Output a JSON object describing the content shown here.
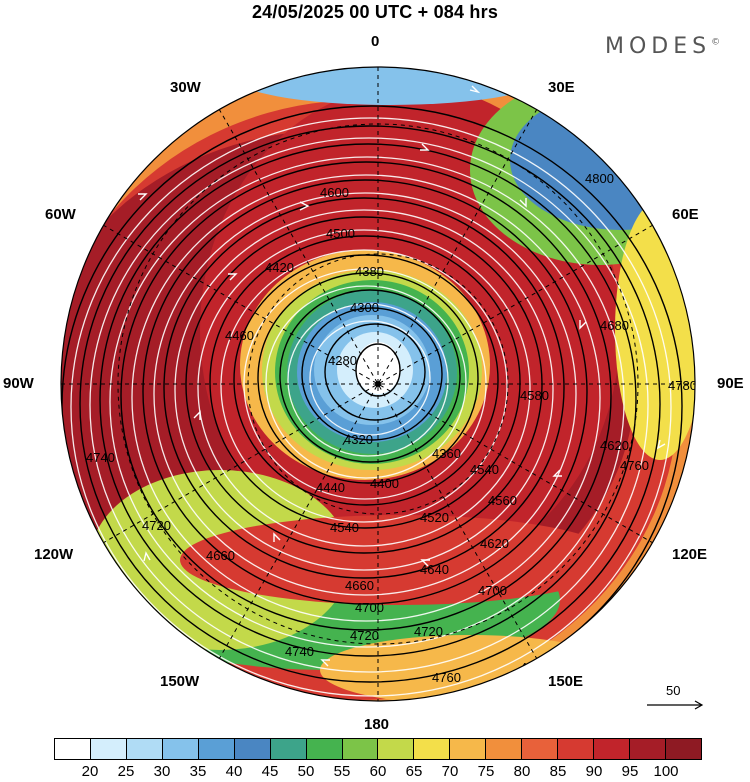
{
  "title": "24/05/2025  00 UTC  + 084 hrs",
  "brand": "MODES",
  "brand_mark": "©",
  "longitude_labels": [
    "0",
    "30E",
    "60E",
    "90E",
    "120E",
    "150E",
    "180",
    "150W",
    "120W",
    "90W",
    "60W",
    "30W"
  ],
  "reference_vector_label": "50",
  "colorbar": {
    "labels": [
      "20",
      "25",
      "30",
      "35",
      "40",
      "45",
      "50",
      "55",
      "60",
      "65",
      "70",
      "75",
      "80",
      "85",
      "90",
      "95",
      "100"
    ],
    "colors": [
      "#ffffff",
      "#d4eefc",
      "#b0dcf5",
      "#85c2eb",
      "#5a9fd6",
      "#4a86c2",
      "#3da48a",
      "#45b34f",
      "#7cc448",
      "#c3d94a",
      "#f3df4a",
      "#f6b84a",
      "#f18f3c",
      "#e8613a",
      "#d63a31",
      "#c1242b",
      "#a51d27",
      "#8e1a23"
    ]
  },
  "contour_labels": [
    "4280",
    "4300",
    "4320",
    "4360",
    "4380",
    "4400",
    "4420",
    "4440",
    "4460",
    "4500",
    "4520",
    "4540",
    "4580",
    "4600",
    "4620",
    "4640",
    "4660",
    "4680",
    "4700",
    "4720",
    "4740",
    "4760",
    "4780",
    "4800",
    "4540",
    "4560",
    "4620",
    "4660",
    "4740",
    "4760",
    "4700",
    "4720",
    "4760",
    "4780",
    "4720"
  ],
  "colors": {
    "jet_core": "#a51d27",
    "jet": "#d63a31",
    "shoulder": "#f18f3c",
    "yellow": "#f3df4a",
    "green": "#45b34f",
    "teal": "#3da48a",
    "blue": "#5a9fd6",
    "light_blue": "#b0dcf5",
    "contour": "#000000",
    "streamline": "#ffffff"
  }
}
